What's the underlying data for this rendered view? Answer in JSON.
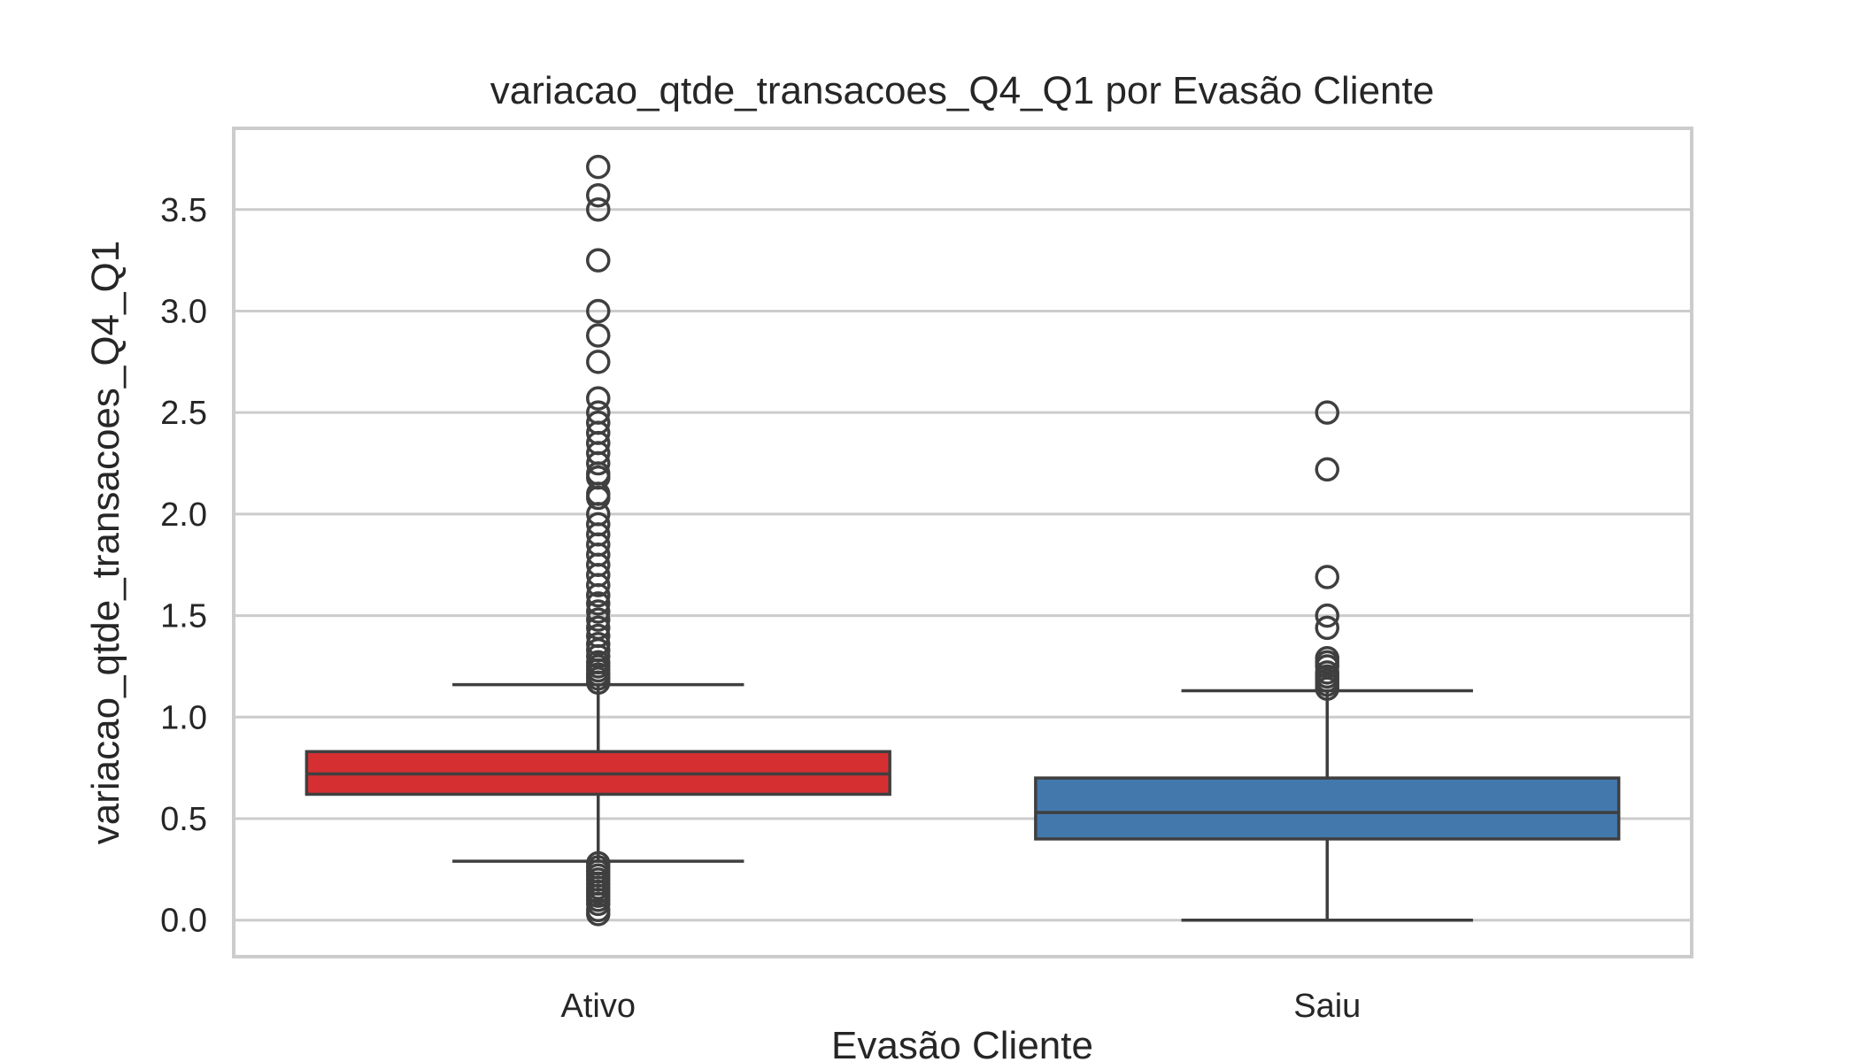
{
  "chart_data": {
    "type": "box",
    "title": "variacao_qtde_transacoes_Q4_Q1 por Evasão Cliente",
    "xlabel": "Evasão Cliente",
    "ylabel": "variacao_qtde_transacoes_Q4_Q1",
    "ylim": [
      -0.18,
      3.9
    ],
    "yticks": [
      0.0,
      0.5,
      1.0,
      1.5,
      2.0,
      2.5,
      3.0,
      3.5
    ],
    "ytick_labels": [
      "0.0",
      "0.5",
      "1.0",
      "1.5",
      "2.0",
      "2.5",
      "3.0",
      "3.5"
    ],
    "grid": true,
    "categories": [
      "Ativo",
      "Saiu"
    ],
    "boxes": [
      {
        "category": "Ativo",
        "color": "#d62f32",
        "whisker_low": 0.29,
        "q1": 0.62,
        "median": 0.72,
        "q3": 0.83,
        "whisker_high": 1.16,
        "outliers": [
          0.03,
          0.05,
          0.08,
          0.1,
          0.12,
          0.14,
          0.16,
          0.18,
          0.2,
          0.22,
          0.24,
          0.26,
          0.28,
          1.17,
          1.19,
          1.21,
          1.23,
          1.25,
          1.27,
          1.3,
          1.33,
          1.36,
          1.4,
          1.44,
          1.48,
          1.52,
          1.56,
          1.6,
          1.65,
          1.7,
          1.75,
          1.8,
          1.85,
          1.9,
          1.95,
          2.0,
          2.08,
          2.1,
          2.18,
          2.2,
          2.25,
          2.3,
          2.35,
          2.4,
          2.45,
          2.5,
          2.57,
          2.75,
          2.88,
          3.0,
          3.25,
          3.5,
          3.57,
          3.71
        ]
      },
      {
        "category": "Saiu",
        "color": "#4378ad",
        "whisker_low": 0.0,
        "q1": 0.4,
        "median": 0.53,
        "q3": 0.7,
        "whisker_high": 1.13,
        "outliers": [
          1.14,
          1.16,
          1.18,
          1.2,
          1.22,
          1.25,
          1.27,
          1.29,
          1.44,
          1.5,
          1.69,
          2.22,
          2.5
        ]
      }
    ]
  }
}
